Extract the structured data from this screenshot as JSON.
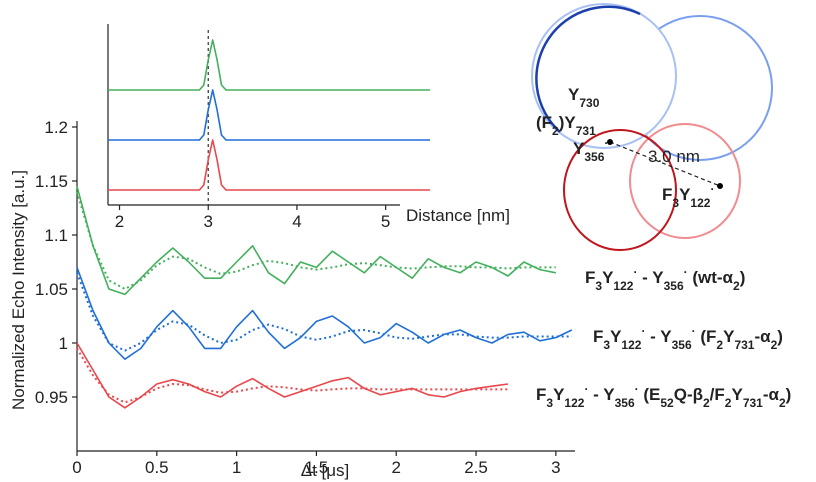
{
  "chart_data": [
    {
      "type": "line",
      "x_label": "Δt [μs]",
      "y_label": "Normalized Echo Intensity [a.u.]",
      "xlim": [
        0,
        3.12
      ],
      "ylim": [
        0.9,
        1.2
      ],
      "xticks": [
        0,
        0.5,
        1,
        1.5,
        2,
        2.5,
        3
      ],
      "yticks": [
        0.95,
        1,
        1.05,
        1.1,
        1.15,
        1.2
      ],
      "x": [
        0,
        0.1,
        0.2,
        0.3,
        0.4,
        0.5,
        0.6,
        0.7,
        0.8,
        0.9,
        1,
        1.1,
        1.2,
        1.3,
        1.4,
        1.5,
        1.6,
        1.7,
        1.8,
        1.9,
        2,
        2.1,
        2.2,
        2.3,
        2.4,
        2.5,
        2.6,
        2.7,
        2.8,
        2.9,
        3,
        3.1
      ],
      "series": [
        {
          "color": "#43b05c",
          "style": "solid",
          "name_parts": [
            {
              "text": "F",
              "style": ""
            },
            {
              "text": "3",
              "style": "sub"
            },
            {
              "text": "Y",
              "style": ""
            },
            {
              "text": "122",
              "style": "sub"
            },
            {
              "text": "·",
              "style": "sup"
            },
            {
              "text": " - Y",
              "style": ""
            },
            {
              "text": "356",
              "style": "sub"
            },
            {
              "text": "·",
              "style": "sup"
            },
            {
              "text": " (wt-α",
              "style": ""
            },
            {
              "text": "2",
              "style": "sub"
            },
            {
              "text": ")",
              "style": ""
            }
          ],
          "values": [
            1.145,
            1.09,
            1.05,
            1.045,
            1.06,
            1.075,
            1.088,
            1.075,
            1.06,
            1.06,
            1.075,
            1.09,
            1.065,
            1.055,
            1.075,
            1.07,
            1.085,
            1.075,
            1.065,
            1.08,
            1.07,
            1.06,
            1.078,
            1.07,
            1.065,
            1.075,
            1.07,
            1.062,
            1.075,
            1.068,
            1.065,
            null
          ]
        },
        {
          "color": "#43b05c",
          "style": "dotted",
          "values": [
            1.14,
            1.09,
            1.058,
            1.05,
            1.058,
            1.072,
            1.08,
            1.078,
            1.07,
            1.064,
            1.066,
            1.072,
            1.076,
            1.074,
            1.07,
            1.068,
            1.07,
            1.073,
            1.074,
            1.072,
            1.07,
            1.069,
            1.07,
            1.071,
            1.071,
            1.07,
            1.07,
            1.069,
            1.07,
            1.07,
            1.07,
            null
          ]
        },
        {
          "color": "#1f6fd6",
          "style": "solid",
          "name_parts": [
            {
              "text": "F",
              "style": ""
            },
            {
              "text": "3",
              "style": "sub"
            },
            {
              "text": "Y",
              "style": ""
            },
            {
              "text": "122",
              "style": "sub"
            },
            {
              "text": "·",
              "style": "sup"
            },
            {
              "text": " - Y",
              "style": ""
            },
            {
              "text": "356",
              "style": "sub"
            },
            {
              "text": "·",
              "style": "sup"
            },
            {
              "text": " (F",
              "style": ""
            },
            {
              "text": "2",
              "style": "sub"
            },
            {
              "text": "Y",
              "style": ""
            },
            {
              "text": "731",
              "style": "sub"
            },
            {
              "text": "-α",
              "style": ""
            },
            {
              "text": "2",
              "style": "sub"
            },
            {
              "text": ")",
              "style": ""
            }
          ],
          "values": [
            1.07,
            1.03,
            1.0,
            0.985,
            0.995,
            1.015,
            1.03,
            1.015,
            0.995,
            0.995,
            1.015,
            1.03,
            1.01,
            0.995,
            1.005,
            1.02,
            1.025,
            1.015,
            1.0,
            1.005,
            1.018,
            1.01,
            1.0,
            1.008,
            1.012,
            1.005,
            1.0,
            1.008,
            1.01,
            1.002,
            1.005,
            1.012
          ]
        },
        {
          "color": "#1f6fd6",
          "style": "dotted",
          "values": [
            1.065,
            1.025,
            1.0,
            0.993,
            1.0,
            1.012,
            1.02,
            1.017,
            1.007,
            1.0,
            1.003,
            1.012,
            1.017,
            1.013,
            1.006,
            1.003,
            1.006,
            1.011,
            1.012,
            1.009,
            1.005,
            1.004,
            1.006,
            1.008,
            1.008,
            1.006,
            1.005,
            1.005,
            1.006,
            1.006,
            1.006,
            1.006
          ]
        },
        {
          "color": "#e8474c",
          "style": "solid",
          "name_parts": [
            {
              "text": "F",
              "style": ""
            },
            {
              "text": "3",
              "style": "sub"
            },
            {
              "text": "Y",
              "style": ""
            },
            {
              "text": "122",
              "style": "sub"
            },
            {
              "text": "·",
              "style": "sup"
            },
            {
              "text": " - Y",
              "style": ""
            },
            {
              "text": "356",
              "style": "sub"
            },
            {
              "text": "·",
              "style": "sup"
            },
            {
              "text": " (E",
              "style": ""
            },
            {
              "text": "52",
              "style": "sub"
            },
            {
              "text": "Q-β",
              "style": ""
            },
            {
              "text": "2",
              "style": "sub"
            },
            {
              "text": "/F",
              "style": ""
            },
            {
              "text": "2",
              "style": "sub"
            },
            {
              "text": "Y",
              "style": ""
            },
            {
              "text": "731",
              "style": "sub"
            },
            {
              "text": "-α",
              "style": ""
            },
            {
              "text": "2",
              "style": "sub"
            },
            {
              "text": ")",
              "style": ""
            }
          ],
          "values": [
            1.0,
            0.975,
            0.95,
            0.94,
            0.95,
            0.962,
            0.966,
            0.962,
            0.955,
            0.95,
            0.96,
            0.967,
            0.958,
            0.95,
            0.955,
            0.96,
            0.965,
            0.968,
            0.958,
            0.952,
            0.955,
            0.958,
            0.952,
            0.95,
            0.955,
            0.958,
            0.96,
            0.962,
            null,
            null,
            null,
            null
          ]
        },
        {
          "color": "#e8474c",
          "style": "dotted",
          "values": [
            0.995,
            0.97,
            0.952,
            0.945,
            0.95,
            0.958,
            0.962,
            0.961,
            0.957,
            0.954,
            0.955,
            0.958,
            0.96,
            0.959,
            0.957,
            0.956,
            0.957,
            0.958,
            0.958,
            0.957,
            0.957,
            0.957,
            0.957,
            0.957,
            0.957,
            0.957,
            0.957,
            0.957,
            null,
            null,
            null,
            null
          ]
        }
      ]
    },
    {
      "type": "line",
      "x_label": "Distance [nm]",
      "xlim": [
        1.87,
        5.5
      ],
      "ylim": [
        -0.3,
        3.2
      ],
      "xticks": [
        2,
        3,
        4,
        5
      ],
      "vline": 3,
      "x": [
        1.87,
        2.9,
        2.95,
        3.0,
        3.05,
        3.1,
        3.15,
        3.2,
        5.5
      ],
      "series": [
        {
          "color": "#43b05c",
          "values": [
            2,
            2,
            2.1,
            2.6,
            3,
            2.6,
            2.1,
            2,
            2
          ]
        },
        {
          "color": "#1f6fd6",
          "values": [
            1,
            1,
            1.1,
            1.6,
            2,
            1.6,
            1.1,
            1,
            1
          ]
        },
        {
          "color": "#e8474c",
          "values": [
            0,
            0,
            0.1,
            0.6,
            1,
            0.6,
            0.1,
            0,
            0
          ]
        }
      ]
    }
  ],
  "diagram": {
    "labels": [
      {
        "parts": [
          {
            "text": "Y",
            "style": ""
          },
          {
            "text": "730",
            "style": "sub"
          }
        ]
      },
      {
        "parts": [
          {
            "text": "(F",
            "style": ""
          },
          {
            "text": "2",
            "style": "sub"
          },
          {
            "text": ")Y",
            "style": ""
          },
          {
            "text": "731",
            "style": "sub"
          }
        ]
      },
      {
        "parts": [
          {
            "text": "Y",
            "style": ""
          },
          {
            "text": "356",
            "style": "sub"
          },
          {
            "text": "·",
            "style": "sup"
          }
        ]
      },
      {
        "parts": [
          {
            "text": "3.0 nm",
            "style": ""
          }
        ]
      },
      {
        "parts": [
          {
            "text": "F",
            "style": ""
          },
          {
            "text": "3",
            "style": "sub"
          },
          {
            "text": "Y",
            "style": ""
          },
          {
            "text": "122",
            "style": "sub"
          },
          {
            "text": "·",
            "style": "sup"
          }
        ]
      }
    ]
  }
}
